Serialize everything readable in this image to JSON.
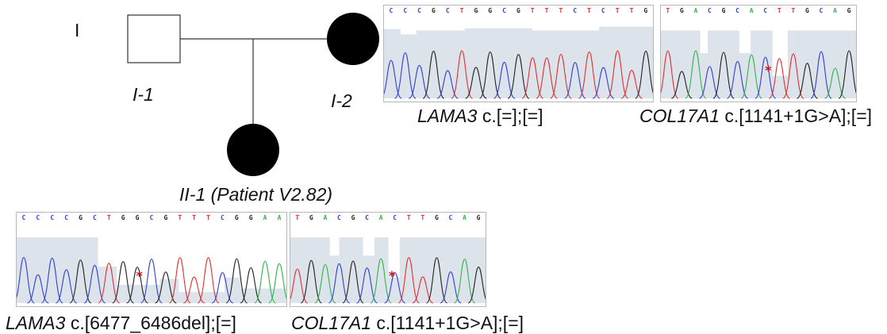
{
  "pedigree": {
    "generation_label": "I",
    "father_label": "I-1",
    "mother_label": "I-2",
    "child_label": "II-1 (Patient V2.82)"
  },
  "traces": {
    "mother_lama3": {
      "bases": [
        "C",
        "C",
        "C",
        "G",
        "C",
        "T",
        "G",
        "G",
        "C",
        "G",
        "T",
        "T",
        "T",
        "C",
        "T",
        "C",
        "T",
        "T",
        "G"
      ],
      "gene": "LAMA3",
      "variant": "c.[=];[=]"
    },
    "mother_col17a1": {
      "bases": [
        "T",
        "G",
        "A",
        "C",
        "G",
        "C",
        "A",
        "C",
        "T",
        "T",
        "G",
        "C",
        "A",
        "G"
      ],
      "gene": "COL17A1",
      "variant": "c.[1141+1G>A];[=]"
    },
    "child_lama3": {
      "bases": [
        "C",
        "C",
        "C",
        "C",
        "G",
        "C",
        "T",
        "G",
        "G",
        "C",
        "G",
        "T",
        "T",
        "T",
        "C",
        "G",
        "G",
        "A",
        "A"
      ],
      "gene": "LAMA3",
      "variant": "c.[6477_6486del];[=]"
    },
    "child_col17a1": {
      "bases": [
        "T",
        "G",
        "A",
        "C",
        "G",
        "C",
        "A",
        "C",
        "T",
        "T",
        "G",
        "C",
        "A",
        "G"
      ],
      "gene": "COL17A1",
      "variant": "c.[1141+1G>A];[=]"
    }
  },
  "colors": {
    "A": "#2fb54a",
    "C": "#3040d8",
    "G": "#222222",
    "T": "#e03030",
    "asterisk": "#d01010"
  }
}
